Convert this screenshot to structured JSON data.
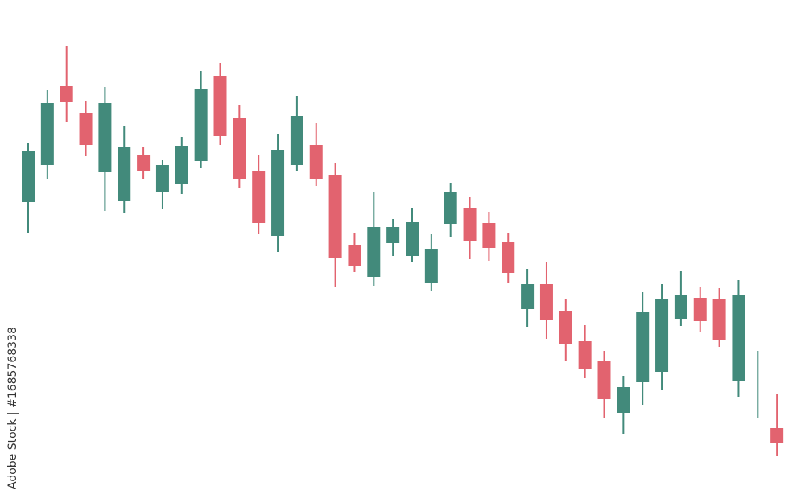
{
  "watermark": "Adobe Stock | #1685768338",
  "chart_data": {
    "type": "candlestick",
    "title": "",
    "xlabel": "",
    "ylabel": "",
    "axes_visible": false,
    "grid": false,
    "ylim": [
      0,
      625
    ],
    "colors": {
      "up": "#428a7b",
      "down": "#e2636f"
    },
    "fields": [
      "open",
      "high",
      "low",
      "close"
    ],
    "candles": [
      [
        374,
        447,
        335,
        437
      ],
      [
        420,
        513,
        402,
        497
      ],
      [
        518,
        568,
        473,
        498
      ],
      [
        484,
        500,
        431,
        445
      ],
      [
        411,
        517,
        363,
        497
      ],
      [
        375,
        468,
        360,
        442
      ],
      [
        433,
        442,
        402,
        413
      ],
      [
        387,
        426,
        365,
        420
      ],
      [
        396,
        455,
        384,
        444
      ],
      [
        425,
        537,
        416,
        514
      ],
      [
        530,
        547,
        445,
        456
      ],
      [
        478,
        495,
        392,
        403
      ],
      [
        413,
        433,
        334,
        348
      ],
      [
        332,
        459,
        312,
        439
      ],
      [
        420,
        506,
        412,
        481
      ],
      [
        445,
        472,
        394,
        403
      ],
      [
        408,
        423,
        268,
        305
      ],
      [
        320,
        336,
        287,
        295
      ],
      [
        281,
        387,
        270,
        343
      ],
      [
        323,
        353,
        307,
        343
      ],
      [
        307,
        367,
        300,
        349
      ],
      [
        273,
        334,
        263,
        315
      ],
      [
        347,
        397,
        331,
        386
      ],
      [
        367,
        380,
        303,
        325
      ],
      [
        348,
        361,
        301,
        317
      ],
      [
        324,
        335,
        273,
        286
      ],
      [
        241,
        291,
        219,
        272
      ],
      [
        272,
        300,
        204,
        228
      ],
      [
        239,
        253,
        176,
        198
      ],
      [
        201,
        221,
        155,
        166
      ],
      [
        177,
        189,
        105,
        129
      ],
      [
        112,
        158,
        86,
        144
      ],
      [
        150,
        262,
        122,
        237
      ],
      [
        163,
        272,
        141,
        254
      ],
      [
        229,
        288,
        220,
        258
      ],
      [
        255,
        269,
        212,
        226
      ],
      [
        254,
        267,
        194,
        203
      ],
      [
        152,
        277,
        132,
        259
      ],
      [
        147,
        189,
        105,
        148
      ],
      [
        93,
        136,
        58,
        74
      ]
    ]
  }
}
